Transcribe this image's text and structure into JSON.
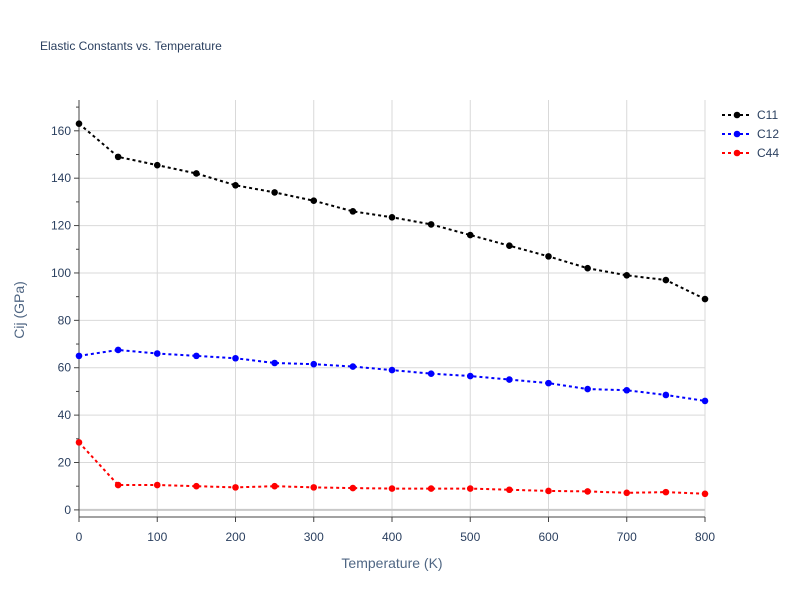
{
  "chart_data": {
    "type": "line",
    "title": "Elastic Constants vs. Temperature",
    "xlabel": "Temperature (K)",
    "ylabel": "Cij (GPa)",
    "xlim": [
      0,
      800
    ],
    "ylim": [
      -3,
      173
    ],
    "x_ticks": [
      0,
      100,
      200,
      300,
      400,
      500,
      600,
      700,
      800
    ],
    "y_ticks": [
      0,
      20,
      40,
      60,
      80,
      100,
      120,
      140,
      160
    ],
    "grid": true,
    "legend_position": "top-right",
    "x": [
      0,
      50,
      100,
      150,
      200,
      250,
      300,
      350,
      400,
      450,
      500,
      550,
      600,
      650,
      700,
      750,
      800
    ],
    "series": [
      {
        "name": "C11",
        "color": "#000000",
        "values": [
          163,
          149,
          145.5,
          142,
          137,
          134,
          130.5,
          126,
          123.5,
          120.5,
          116,
          111.5,
          107,
          102,
          99,
          97,
          89
        ]
      },
      {
        "name": "C12",
        "color": "#0000ff",
        "values": [
          65,
          67.5,
          66,
          65,
          64,
          62,
          61.5,
          60.5,
          59,
          57.5,
          56.5,
          55,
          53.5,
          51,
          50.5,
          48.5,
          46
        ]
      },
      {
        "name": "C44",
        "color": "#ff0000",
        "values": [
          28.5,
          10.5,
          10.5,
          10,
          9.5,
          10,
          9.5,
          9.2,
          9,
          9,
          9,
          8.5,
          8,
          7.8,
          7.2,
          7.5,
          6.8
        ]
      }
    ]
  }
}
